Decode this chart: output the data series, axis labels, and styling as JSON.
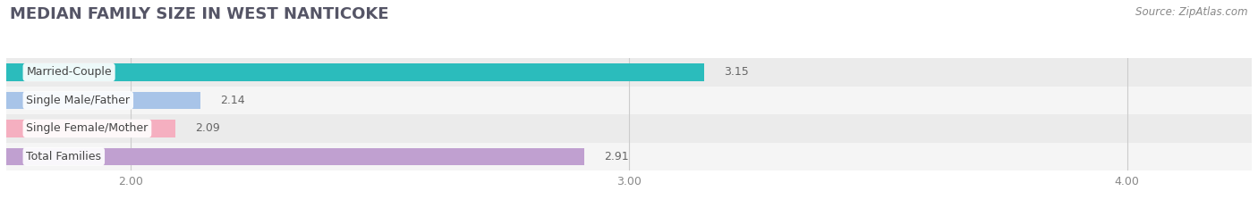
{
  "title": "MEDIAN FAMILY SIZE IN WEST NANTICOKE",
  "source": "Source: ZipAtlas.com",
  "categories": [
    "Married-Couple",
    "Single Male/Father",
    "Single Female/Mother",
    "Total Families"
  ],
  "values": [
    3.15,
    2.14,
    2.09,
    2.91
  ],
  "bar_colors": [
    "#2bbcbc",
    "#a8c4e8",
    "#f5afc0",
    "#c0a0d0"
  ],
  "xlim_left": 1.75,
  "xlim_right": 4.25,
  "xticks": [
    2.0,
    3.0,
    4.0
  ],
  "xtick_labels": [
    "2.00",
    "3.00",
    "4.00"
  ],
  "bar_height": 0.62,
  "background_color": "#ffffff",
  "plot_bg_color": "#f5f5f5",
  "row_bg_even": "#ebebeb",
  "row_bg_odd": "#f5f5f5",
  "title_fontsize": 13,
  "label_fontsize": 9,
  "value_fontsize": 9,
  "tick_fontsize": 9,
  "source_fontsize": 8.5,
  "title_color": "#555566",
  "label_color": "#444444",
  "value_color": "#666666",
  "tick_color": "#888888",
  "source_color": "#888888",
  "grid_color": "#cccccc"
}
